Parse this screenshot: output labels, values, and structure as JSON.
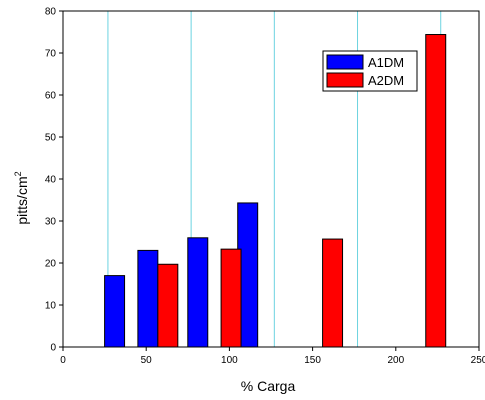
{
  "chart_data": {
    "type": "bar",
    "xlabel": "% Carga",
    "ylabel_main": "pitts/cm",
    "ylabel_sup": "2",
    "xlim": [
      0,
      250
    ],
    "ylim": [
      0,
      80
    ],
    "xticks": [
      0,
      50,
      100,
      150,
      200,
      250
    ],
    "yticks": [
      0,
      10,
      20,
      30,
      40,
      50,
      60,
      70,
      80
    ],
    "vertical_gridlines_x": [
      27,
      77,
      127,
      177,
      227
    ],
    "grid_color": "#6cd3e0",
    "legend_position": "top-right",
    "bar_width": 12,
    "series": [
      {
        "name": "A1DM",
        "color": "#0000ff",
        "points": [
          {
            "x": 31,
            "y": 17
          },
          {
            "x": 51,
            "y": 23
          },
          {
            "x": 81,
            "y": 26
          },
          {
            "x": 111,
            "y": 34.3
          }
        ]
      },
      {
        "name": "A2DM",
        "color": "#ff0000",
        "points": [
          {
            "x": 63,
            "y": 19.7
          },
          {
            "x": 101,
            "y": 23.3
          },
          {
            "x": 162,
            "y": 25.7
          },
          {
            "x": 224,
            "y": 74.4
          }
        ]
      }
    ]
  }
}
